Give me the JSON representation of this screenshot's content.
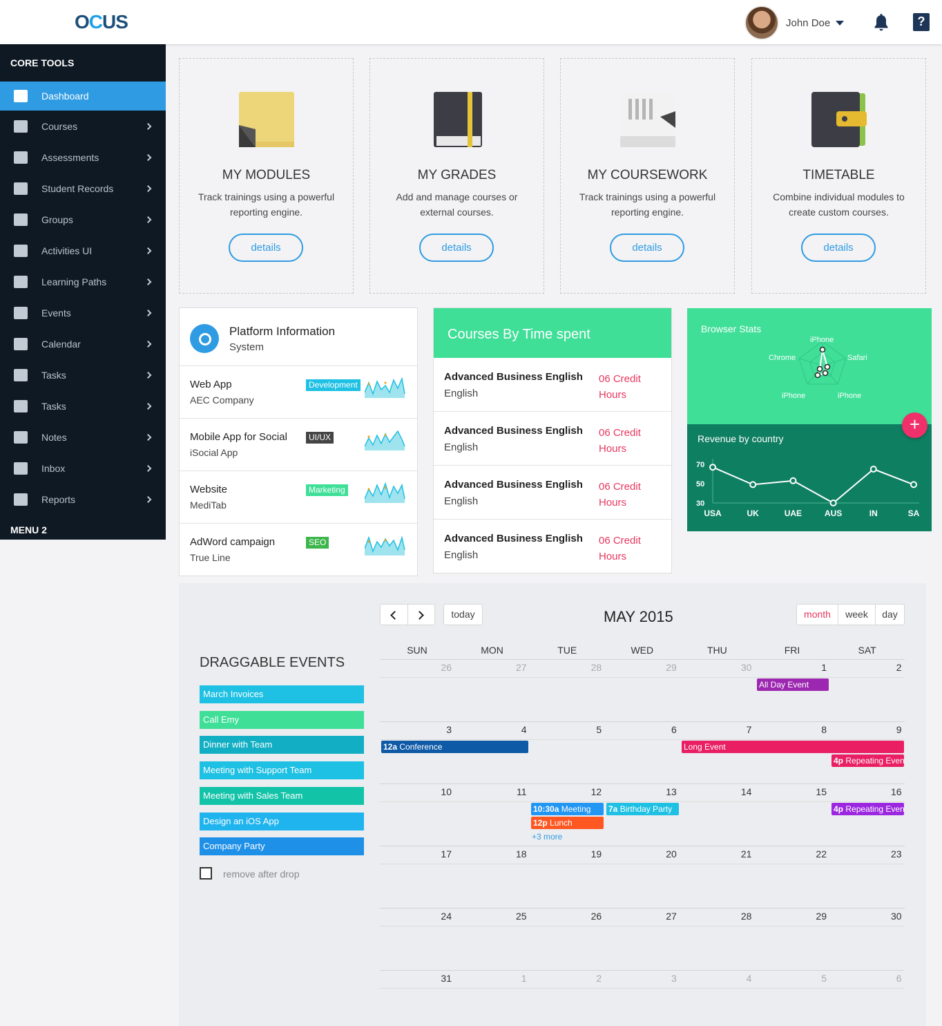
{
  "brand": {
    "logo_a": "O",
    "logo_b": "C",
    "logo_c": "US"
  },
  "user": {
    "name": "John Doe"
  },
  "sidebar": {
    "section1": "CORE TOOLS",
    "items": [
      {
        "label": "Dashboard",
        "icon": "dashboard-icon"
      },
      {
        "label": "Courses",
        "icon": "courses-icon"
      },
      {
        "label": "Assessments",
        "icon": "assessments-icon"
      },
      {
        "label": "Student Records",
        "icon": "records-icon"
      },
      {
        "label": "Groups",
        "icon": "groups-icon"
      },
      {
        "label": "Activities UI",
        "icon": "activities-icon"
      },
      {
        "label": "Learning Paths",
        "icon": "book-icon"
      },
      {
        "label": "Events",
        "icon": "events-icon"
      },
      {
        "label": "Calendar",
        "icon": "calendar-icon"
      },
      {
        "label": "Tasks",
        "icon": "briefcase-icon"
      },
      {
        "label": "Tasks",
        "icon": "briefcase-icon"
      },
      {
        "label": "Notes",
        "icon": "notes-icon"
      },
      {
        "label": "Inbox",
        "icon": "mail-icon"
      },
      {
        "label": "Reports",
        "icon": "laptop-icon"
      }
    ],
    "section2": "MENU 2"
  },
  "cards": [
    {
      "title": "MY MODULES",
      "desc": "Track trainings using a powerful reporting engine.",
      "button": "details",
      "icon": "sticky-note-icon"
    },
    {
      "title": "MY GRADES",
      "desc": "Add and manage courses or external courses.",
      "button": "details",
      "icon": "notebook-icon"
    },
    {
      "title": "MY COURSEWORK",
      "desc": "Track trainings using a powerful reporting engine.",
      "button": "details",
      "icon": "papers-icon"
    },
    {
      "title": "TIMETABLE",
      "desc": "Combine individual modules to create custom courses.",
      "button": "details",
      "icon": "wallet-icon"
    }
  ],
  "platform": {
    "title": "Platform Information",
    "subtitle": "System",
    "rows": [
      {
        "name": "Web App",
        "company": "AEC Company",
        "tag": "Development",
        "tag_color": "#1ec0e3"
      },
      {
        "name": "Mobile App for Social",
        "company": "iSocial App",
        "tag": "UI/UX",
        "tag_color": "#444444"
      },
      {
        "name": "Website",
        "company": "MediTab",
        "tag": "Marketing",
        "tag_color": "#3fdf98"
      },
      {
        "name": "AdWord campaign",
        "company": "True Line",
        "tag": "SEO",
        "tag_color": "#3cb54a"
      }
    ]
  },
  "courses_time": {
    "title": "Courses By Time spent",
    "rows": [
      {
        "course": "Advanced Business English",
        "lang": "English",
        "credit": "06 Credit",
        "unit": "Hours"
      },
      {
        "course": "Advanced Business English",
        "lang": "English",
        "credit": "06 Credit",
        "unit": "Hours"
      },
      {
        "course": "Advanced Business English",
        "lang": "English",
        "credit": "06 Credit",
        "unit": "Hours"
      },
      {
        "course": "Advanced Business English",
        "lang": "English",
        "credit": "06 Credit",
        "unit": "Hours"
      }
    ]
  },
  "browser_stats": {
    "title": "Browser Stats",
    "labels": [
      "iPhone",
      "Safari",
      "iPhone",
      "iPhone",
      "Chrome"
    ]
  },
  "chart_data": {
    "type": "line",
    "title": "Revenue by country",
    "categories": [
      "USA",
      "UK",
      "UAE",
      "AUS",
      "IN",
      "SA"
    ],
    "values": [
      67,
      49,
      53,
      30,
      65,
      49
    ],
    "yticks": [
      "70",
      "50",
      "30"
    ],
    "ylim": [
      30,
      70
    ]
  },
  "calendar": {
    "today": "today",
    "title": "MAY 2015",
    "views": [
      "month",
      "week",
      "day"
    ],
    "dow": [
      "SUN",
      "MON",
      "TUE",
      "WED",
      "THU",
      "FRI",
      "SAT"
    ],
    "weeks": [
      [
        "26",
        "27",
        "28",
        "29",
        "30",
        "1",
        "2"
      ],
      [
        "3",
        "4",
        "5",
        "6",
        "7",
        "8",
        "9"
      ],
      [
        "10",
        "11",
        "12",
        "13",
        "14",
        "15",
        "16"
      ],
      [
        "17",
        "18",
        "19",
        "20",
        "21",
        "22",
        "23"
      ],
      [
        "24",
        "25",
        "26",
        "27",
        "28",
        "29",
        "30"
      ],
      [
        "31",
        "1",
        "2",
        "3",
        "4",
        "5",
        "6"
      ]
    ],
    "events": {
      "allday": "All Day Event",
      "conf_time": "12a",
      "conf": "Conference",
      "long": "Long Event",
      "rep1_time": "4p",
      "rep1": "Repeating Even",
      "meet_time": "10:30a",
      "meet": "Meeting",
      "bday_time": "7a",
      "bday": "Birthday Party",
      "rep2_time": "4p",
      "rep2": "Repeating Even",
      "lunch_time": "12p",
      "lunch": "Lunch",
      "more": "+3 more"
    },
    "colors": {
      "allday": "#9c27b0",
      "conf": "#0e5aa7",
      "long": "#e91e63",
      "rep1": "#e91e63",
      "meet": "#2196f3",
      "bday": "#1ec0e3",
      "rep2": "#9c27e0",
      "lunch": "#ff5722"
    }
  },
  "draggable": {
    "title": "DRAGGABLE EVENTS",
    "items": [
      {
        "label": "March Invoices",
        "color": "#1ec0e3"
      },
      {
        "label": "Call Emy",
        "color": "#3fdf98"
      },
      {
        "label": "Dinner with Team",
        "color": "#12aec3"
      },
      {
        "label": "Meeting with Support Team",
        "color": "#1ec0e3"
      },
      {
        "label": "Meeting with Sales Team",
        "color": "#12c3a8"
      },
      {
        "label": "Design an iOS App",
        "color": "#20b4ef"
      },
      {
        "label": "Company Party",
        "color": "#1e90e8"
      }
    ],
    "remove_label": "remove after drop"
  }
}
